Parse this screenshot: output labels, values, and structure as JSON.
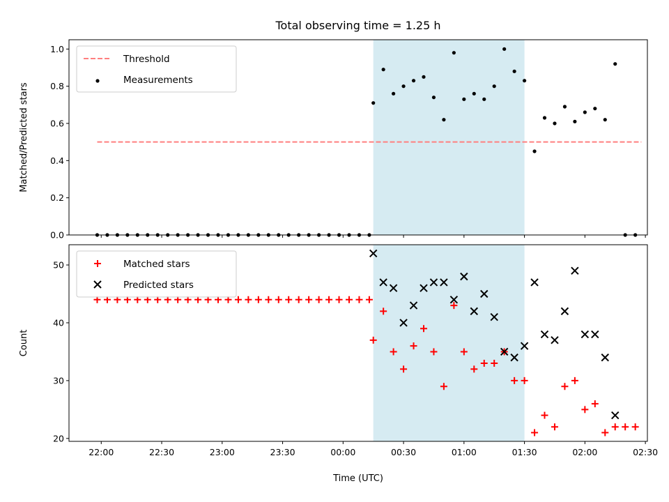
{
  "chart_data": {
    "title": "Total observing time = 1.25 h",
    "xlabel": "Time (UTC)",
    "x_ticks": [
      "22:00",
      "22:30",
      "23:00",
      "23:30",
      "00:00",
      "00:30",
      "01:00",
      "01:30",
      "02:00",
      "02:30"
    ],
    "x_range_minutes": [
      1304,
      1591
    ],
    "shaded_interval_minutes": [
      1455,
      1530
    ],
    "colors": {
      "threshold": "#ff7f7f",
      "measurements": "#000000",
      "matched": "#ff0000",
      "predicted": "#000000",
      "shade": "#add8e6"
    },
    "panels": [
      {
        "type": "scatter",
        "ylabel": "Matched/Predicted stars",
        "ylim": [
          0,
          1.05
        ],
        "yticks": [
          "0.0",
          "0.2",
          "0.4",
          "0.6",
          "0.8",
          "1.0"
        ],
        "legend_position": "upper-left",
        "series": [
          {
            "name": "Threshold",
            "style": "dashed-line",
            "x": [
              1318,
              1588
            ],
            "y": [
              0.5,
              0.5
            ]
          },
          {
            "name": "Measurements",
            "style": "dot",
            "x": [
              1318,
              1323,
              1328,
              1333,
              1338,
              1343,
              1348,
              1353,
              1358,
              1363,
              1368,
              1373,
              1378,
              1383,
              1388,
              1393,
              1398,
              1403,
              1408,
              1413,
              1418,
              1423,
              1428,
              1433,
              1438,
              1443,
              1448,
              1453,
              1455,
              1460,
              1465,
              1470,
              1475,
              1480,
              1485,
              1490,
              1495,
              1500,
              1505,
              1510,
              1515,
              1520,
              1525,
              1530,
              1535,
              1540,
              1545,
              1550,
              1555,
              1560,
              1565,
              1570,
              1575,
              1580,
              1585
            ],
            "y": [
              0,
              0,
              0,
              0,
              0,
              0,
              0,
              0,
              0,
              0,
              0,
              0,
              0,
              0,
              0,
              0,
              0,
              0,
              0,
              0,
              0,
              0,
              0,
              0,
              0,
              0,
              0,
              0,
              0.71,
              0.89,
              0.76,
              0.8,
              0.83,
              0.85,
              0.74,
              0.62,
              0.98,
              0.73,
              0.76,
              0.73,
              0.8,
              1.0,
              0.88,
              0.83,
              0.45,
              0.63,
              0.6,
              0.69,
              0.61,
              0.66,
              0.68,
              0.62,
              0.92,
              0,
              0
            ]
          }
        ]
      },
      {
        "type": "scatter",
        "ylabel": "Count",
        "ylim": [
          19.5,
          53.5
        ],
        "yticks": [
          "20",
          "30",
          "40",
          "50"
        ],
        "legend_position": "upper-left",
        "series": [
          {
            "name": "Matched stars",
            "marker": "plus",
            "x": [
              1318,
              1323,
              1328,
              1333,
              1338,
              1343,
              1348,
              1353,
              1358,
              1363,
              1368,
              1373,
              1378,
              1383,
              1388,
              1393,
              1398,
              1403,
              1408,
              1413,
              1418,
              1423,
              1428,
              1433,
              1438,
              1443,
              1448,
              1453,
              1455,
              1460,
              1465,
              1470,
              1475,
              1480,
              1485,
              1490,
              1495,
              1500,
              1505,
              1510,
              1515,
              1520,
              1525,
              1530,
              1535,
              1540,
              1545,
              1550,
              1555,
              1560,
              1565,
              1570,
              1575,
              1580,
              1585
            ],
            "y": [
              44,
              44,
              44,
              44,
              44,
              44,
              44,
              44,
              44,
              44,
              44,
              44,
              44,
              44,
              44,
              44,
              44,
              44,
              44,
              44,
              44,
              44,
              44,
              44,
              44,
              44,
              44,
              44,
              37,
              42,
              35,
              32,
              36,
              39,
              35,
              29,
              43,
              35,
              32,
              33,
              33,
              35,
              30,
              30,
              21,
              24,
              22,
              29,
              30,
              25,
              26,
              21,
              22,
              22,
              22
            ]
          },
          {
            "name": "Predicted stars",
            "marker": "x",
            "x": [
              1455,
              1460,
              1465,
              1470,
              1475,
              1480,
              1485,
              1490,
              1495,
              1500,
              1505,
              1510,
              1515,
              1520,
              1525,
              1530,
              1535,
              1540,
              1545,
              1550,
              1555,
              1560,
              1565,
              1570,
              1575
            ],
            "y": [
              52,
              47,
              46,
              40,
              43,
              46,
              47,
              47,
              44,
              48,
              42,
              45,
              41,
              35,
              34,
              36,
              47,
              38,
              37,
              42,
              49,
              38,
              38,
              34,
              24
            ]
          }
        ]
      }
    ]
  }
}
